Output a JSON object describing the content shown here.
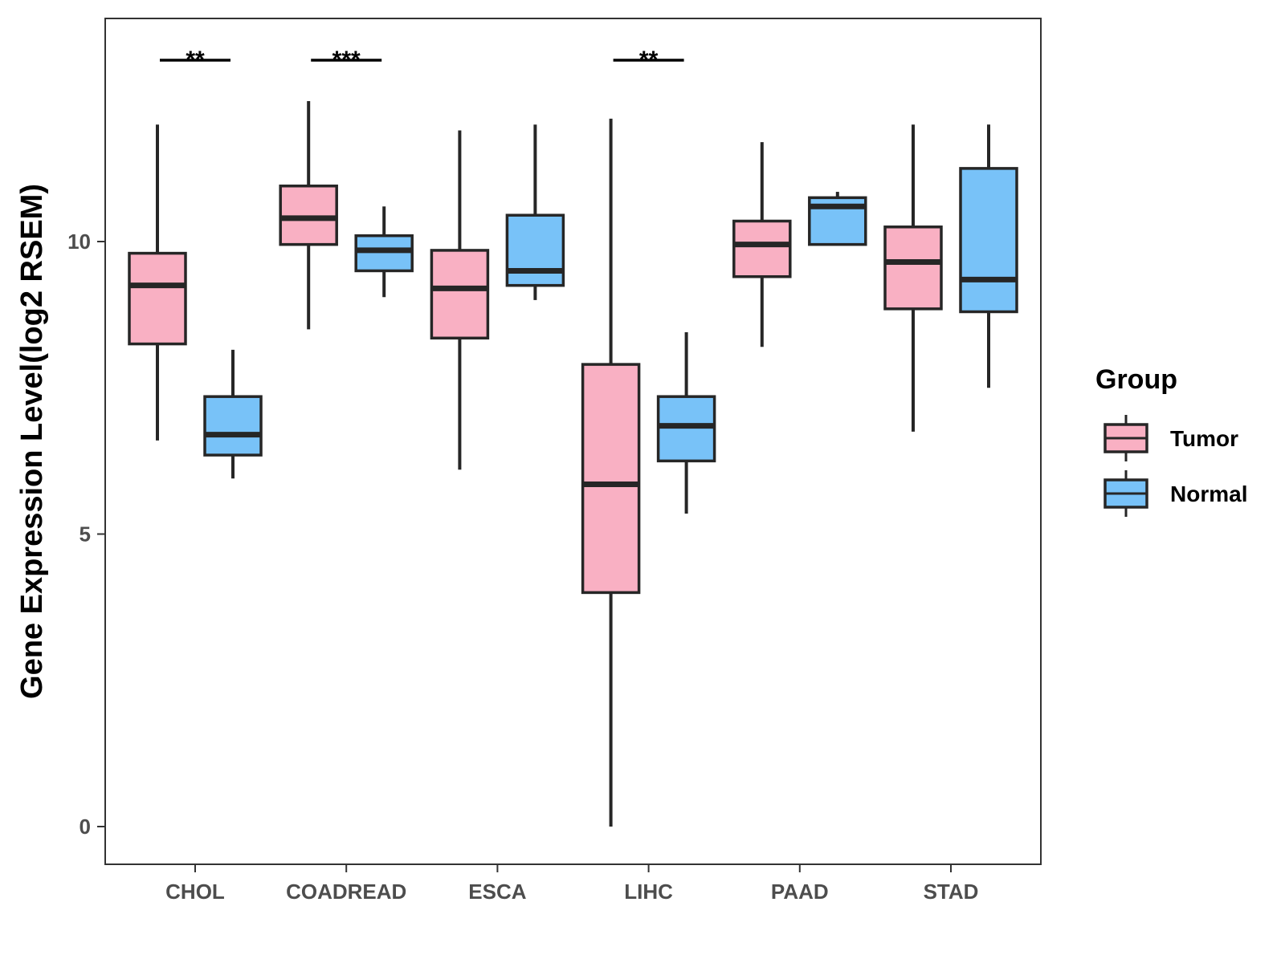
{
  "chart_data": {
    "type": "boxplot",
    "title": "",
    "xlabel": "",
    "ylabel": "Gene Expression Level(log2 RSEM)",
    "ylim": [
      -0.65,
      13.8
    ],
    "yticks": [
      0,
      5,
      10
    ],
    "categories": [
      "CHOL",
      "COADREAD",
      "ESCA",
      "LIHC",
      "PAAD",
      "STAD"
    ],
    "legend": {
      "title": "Group",
      "position": "right",
      "entries": [
        "Tumor",
        "Normal"
      ]
    },
    "colors": {
      "Tumor": "#F9B0C3",
      "Normal": "#78C2F8",
      "outline": "#262626",
      "frame": "#333333"
    },
    "series": [
      {
        "name": "Tumor",
        "boxes": [
          {
            "category": "CHOL",
            "min": 6.6,
            "q1": 8.25,
            "median": 9.25,
            "q3": 9.8,
            "max": 12.0
          },
          {
            "category": "COADREAD",
            "min": 8.5,
            "q1": 9.95,
            "median": 10.4,
            "q3": 10.95,
            "max": 12.4
          },
          {
            "category": "ESCA",
            "min": 6.1,
            "q1": 8.35,
            "median": 9.2,
            "q3": 9.85,
            "max": 11.9
          },
          {
            "category": "LIHC",
            "min": 0.0,
            "q1": 4.0,
            "median": 5.85,
            "q3": 7.9,
            "max": 12.1
          },
          {
            "category": "PAAD",
            "min": 8.2,
            "q1": 9.4,
            "median": 9.95,
            "q3": 10.35,
            "max": 11.7
          },
          {
            "category": "STAD",
            "min": 6.75,
            "q1": 8.85,
            "median": 9.65,
            "q3": 10.25,
            "max": 12.0
          }
        ]
      },
      {
        "name": "Normal",
        "boxes": [
          {
            "category": "CHOL",
            "min": 5.95,
            "q1": 6.35,
            "median": 6.7,
            "q3": 7.35,
            "max": 8.15
          },
          {
            "category": "COADREAD",
            "min": 9.05,
            "q1": 9.5,
            "median": 9.85,
            "q3": 10.1,
            "max": 10.6
          },
          {
            "category": "ESCA",
            "min": 9.0,
            "q1": 9.25,
            "median": 9.5,
            "q3": 10.45,
            "max": 12.0
          },
          {
            "category": "LIHC",
            "min": 5.35,
            "q1": 6.25,
            "median": 6.85,
            "q3": 7.35,
            "max": 8.45
          },
          {
            "category": "PAAD",
            "min": 9.95,
            "q1": 9.95,
            "median": 10.6,
            "q3": 10.75,
            "max": 10.85
          },
          {
            "category": "STAD",
            "min": 7.5,
            "q1": 8.8,
            "median": 9.35,
            "q3": 11.25,
            "max": 12.0
          }
        ]
      }
    ],
    "significance": [
      {
        "category": "CHOL",
        "label": "**",
        "y": 13.1
      },
      {
        "category": "COADREAD",
        "label": "***",
        "y": 13.1
      },
      {
        "category": "LIHC",
        "label": "**",
        "y": 13.1
      }
    ]
  }
}
